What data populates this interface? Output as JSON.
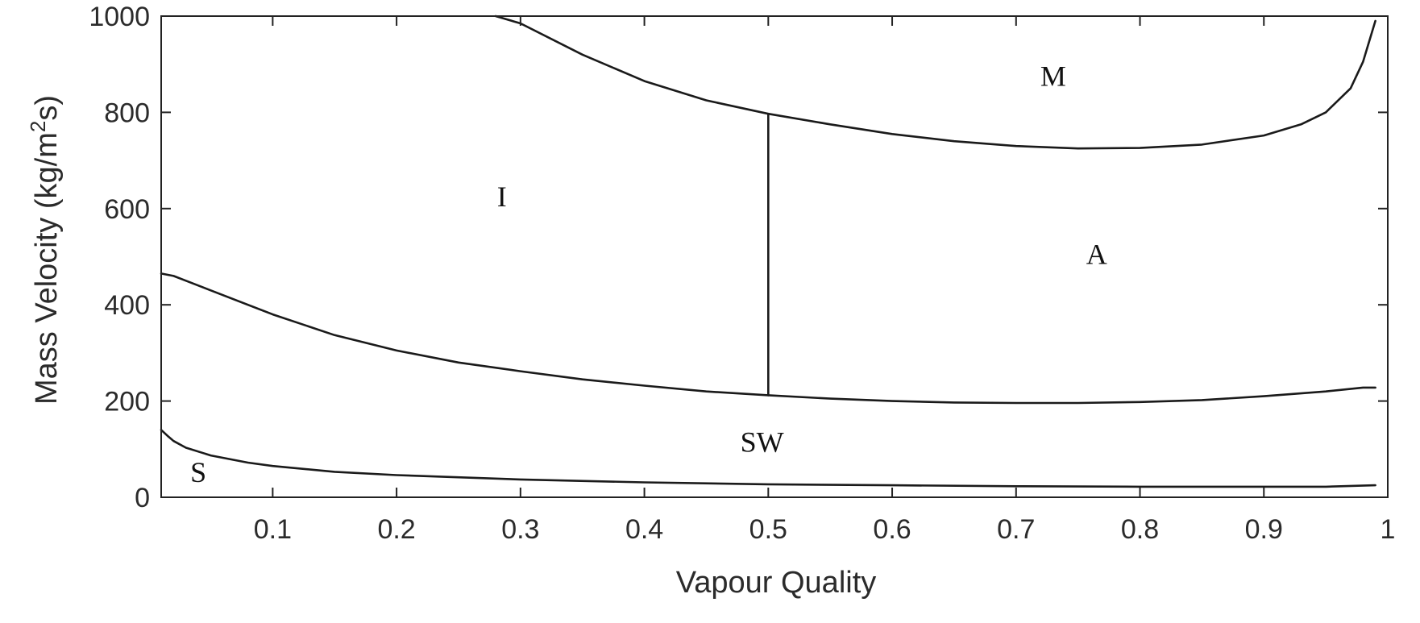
{
  "chart_data": {
    "type": "line",
    "title": "",
    "xlabel": "Vapour Quality",
    "ylabel_main": "Mass Velocity (kg/m",
    "ylabel_sup": "2",
    "ylabel_tail": "s)",
    "xlim": [
      0.01,
      1.0
    ],
    "ylim": [
      0,
      1000
    ],
    "x_ticks": [
      0.1,
      0.2,
      0.3,
      0.4,
      0.5,
      0.6,
      0.7,
      0.8,
      0.9,
      1
    ],
    "x_tick_labels": [
      "0.1",
      "0.2",
      "0.3",
      "0.4",
      "0.5",
      "0.6",
      "0.7",
      "0.8",
      "0.9",
      "1"
    ],
    "y_ticks": [
      0,
      200,
      400,
      600,
      800,
      1000
    ],
    "y_tick_labels": [
      "0",
      "200",
      "400",
      "600",
      "800",
      "1000"
    ],
    "grid": false,
    "legend": "none",
    "line_color": "#1a1a1a",
    "series": [
      {
        "x": [
          0.28,
          0.3,
          0.35,
          0.4,
          0.45,
          0.5,
          0.55,
          0.6,
          0.65,
          0.7,
          0.75,
          0.8,
          0.85,
          0.9,
          0.93,
          0.95,
          0.97,
          0.98,
          0.99
        ],
        "values": [
          1000,
          985,
          920,
          865,
          825,
          797,
          775,
          755,
          740,
          730,
          725,
          726,
          733,
          752,
          775,
          800,
          850,
          905,
          990
        ]
      },
      {
        "x": [
          0.01,
          0.02,
          0.03,
          0.05,
          0.1,
          0.15,
          0.2,
          0.25,
          0.3,
          0.35,
          0.4,
          0.45,
          0.5,
          0.55,
          0.6,
          0.65,
          0.7,
          0.75,
          0.8,
          0.85,
          0.9,
          0.95,
          0.98,
          0.99
        ],
        "values": [
          465,
          460,
          450,
          430,
          380,
          337,
          305,
          280,
          262,
          245,
          232,
          220,
          212,
          205,
          200,
          197,
          196,
          196,
          198,
          202,
          210,
          220,
          228,
          228
        ]
      },
      {
        "x": [
          0.01,
          0.015,
          0.02,
          0.03,
          0.05,
          0.08,
          0.1,
          0.15,
          0.2,
          0.3,
          0.4,
          0.5,
          0.6,
          0.7,
          0.8,
          0.9,
          0.95,
          0.99
        ],
        "values": [
          140,
          128,
          117,
          103,
          87,
          72,
          65,
          53,
          46,
          37,
          31,
          27,
          25,
          23,
          22,
          22,
          22,
          25
        ]
      },
      {
        "x": [
          0.5,
          0.5
        ],
        "values": [
          212,
          797
        ]
      }
    ],
    "annotations": [
      {
        "text": "M",
        "x": 0.73,
        "y": 875
      },
      {
        "text": "I",
        "x": 0.285,
        "y": 625
      },
      {
        "text": "A",
        "x": 0.765,
        "y": 505
      },
      {
        "text": "SW",
        "x": 0.495,
        "y": 115
      },
      {
        "text": "S",
        "x": 0.04,
        "y": 52
      }
    ]
  }
}
